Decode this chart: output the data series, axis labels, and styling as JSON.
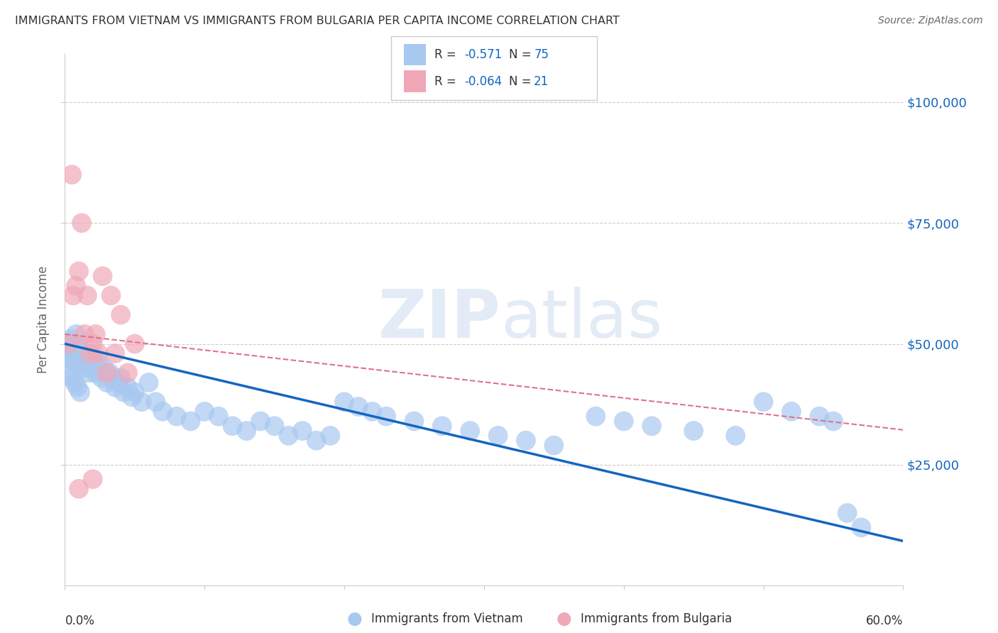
{
  "title": "IMMIGRANTS FROM VIETNAM VS IMMIGRANTS FROM BULGARIA PER CAPITA INCOME CORRELATION CHART",
  "source": "Source: ZipAtlas.com",
  "ylabel": "Per Capita Income",
  "watermark": "ZIPatlas",
  "color_vietnam": "#a8c8f0",
  "color_bulgaria": "#f0a8b8",
  "color_line_vietnam": "#1565c0",
  "color_line_bulgaria": "#e07090",
  "color_grid": "#cccccc",
  "color_blue_text": "#1565c0",
  "color_dark_text": "#333333",
  "color_mid_text": "#666666",
  "ytick_labels": [
    "$25,000",
    "$50,000",
    "$75,000",
    "$100,000"
  ],
  "ytick_values": [
    25000,
    50000,
    75000,
    100000
  ],
  "ymin": 0,
  "ymax": 110000,
  "xmin": 0.0,
  "xmax": 0.6,
  "vietnam_x": [
    0.002,
    0.003,
    0.004,
    0.005,
    0.006,
    0.007,
    0.008,
    0.009,
    0.01,
    0.011,
    0.012,
    0.013,
    0.014,
    0.015,
    0.016,
    0.017,
    0.018,
    0.019,
    0.02,
    0.022,
    0.024,
    0.026,
    0.028,
    0.03,
    0.032,
    0.034,
    0.036,
    0.038,
    0.04,
    0.042,
    0.045,
    0.048,
    0.05,
    0.055,
    0.06,
    0.065,
    0.07,
    0.08,
    0.09,
    0.1,
    0.11,
    0.12,
    0.13,
    0.14,
    0.15,
    0.16,
    0.17,
    0.18,
    0.19,
    0.2,
    0.21,
    0.22,
    0.23,
    0.25,
    0.27,
    0.29,
    0.31,
    0.33,
    0.35,
    0.38,
    0.4,
    0.42,
    0.45,
    0.48,
    0.5,
    0.52,
    0.54,
    0.55,
    0.56,
    0.57,
    0.003,
    0.005,
    0.007,
    0.009,
    0.011
  ],
  "vietnam_y": [
    47000,
    49000,
    51000,
    48000,
    50000,
    46000,
    52000,
    47500,
    49500,
    46000,
    48000,
    47000,
    45000,
    46000,
    48000,
    44000,
    46000,
    45000,
    47000,
    44000,
    46000,
    43000,
    45000,
    42000,
    44000,
    43000,
    41000,
    42000,
    43000,
    40000,
    41000,
    39000,
    40000,
    38000,
    42000,
    38000,
    36000,
    35000,
    34000,
    36000,
    35000,
    33000,
    32000,
    34000,
    33000,
    31000,
    32000,
    30000,
    31000,
    38000,
    37000,
    36000,
    35000,
    34000,
    33000,
    32000,
    31000,
    30000,
    29000,
    35000,
    34000,
    33000,
    32000,
    31000,
    38000,
    36000,
    35000,
    34000,
    15000,
    12000,
    44000,
    43000,
    42000,
    41000,
    40000
  ],
  "bulgaria_x": [
    0.003,
    0.005,
    0.006,
    0.008,
    0.01,
    0.012,
    0.014,
    0.016,
    0.018,
    0.02,
    0.022,
    0.024,
    0.027,
    0.03,
    0.033,
    0.036,
    0.04,
    0.045,
    0.05,
    0.02,
    0.01
  ],
  "bulgaria_y": [
    50000,
    85000,
    60000,
    62000,
    65000,
    75000,
    52000,
    60000,
    48000,
    50000,
    52000,
    48000,
    64000,
    44000,
    60000,
    48000,
    56000,
    44000,
    50000,
    22000,
    20000
  ]
}
